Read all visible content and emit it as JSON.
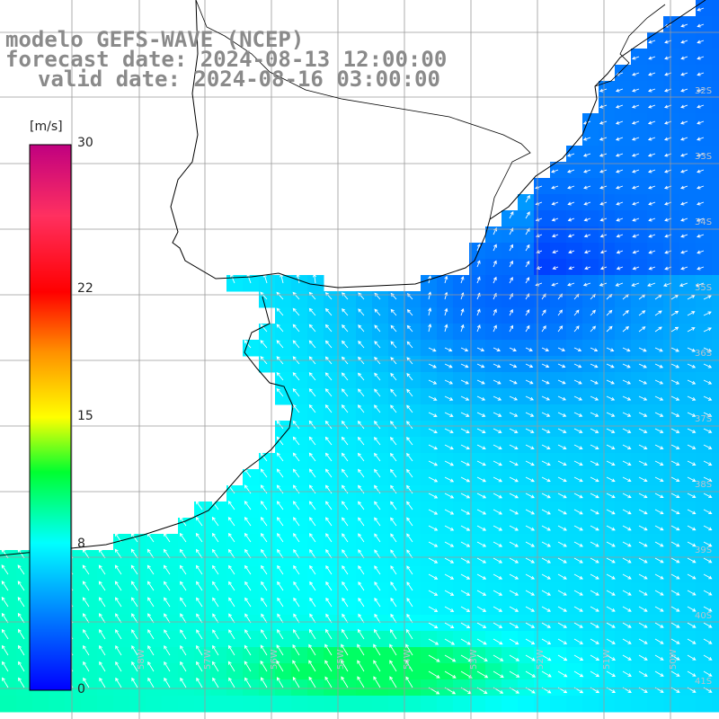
{
  "title": {
    "line1": "modelo GEFS-WAVE (NCEP)",
    "line2": "forecast date: 2024-08-13 12:00:00",
    "line3": "valid date: 2024-08-16 03:00:00"
  },
  "colorbar": {
    "unit": "[m/s]",
    "ticks": [
      "30",
      "22",
      "15",
      "8",
      "0"
    ],
    "tick_values": [
      30,
      22,
      15,
      8,
      0
    ],
    "range": [
      0,
      30
    ]
  },
  "map": {
    "lon_range": [
      -60,
      -49
    ],
    "lat_range": [
      -42,
      -31
    ],
    "lat_labels": [
      "32S",
      "33S",
      "34S",
      "35S",
      "36S",
      "37S",
      "38S",
      "39S",
      "40S",
      "41S"
    ],
    "lon_labels": [
      "58W",
      "57W",
      "56W",
      "55W",
      "54W",
      "53W",
      "52W",
      "51W",
      "50W"
    ],
    "grid_color": "#9a9a9a",
    "coast_color": "#000000"
  }
}
